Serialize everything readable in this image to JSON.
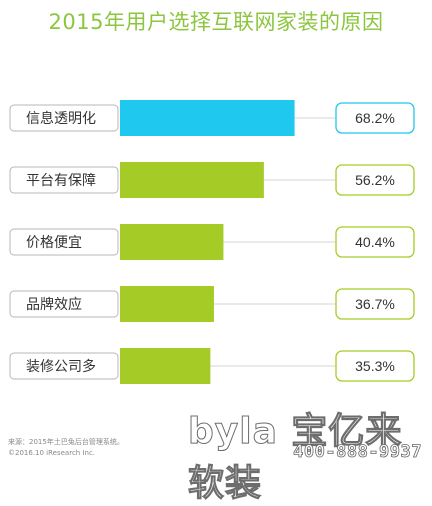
{
  "chart_data": {
    "type": "bar",
    "orientation": "horizontal",
    "title": "2015年用户选择互联网家装的原因",
    "categories": [
      "信息透明化",
      "平台有保障",
      "价格便宜",
      "品牌效应",
      "装修公司多"
    ],
    "values": [
      68.2,
      56.2,
      40.4,
      36.7,
      35.3
    ],
    "value_labels": [
      "68.2%",
      "56.2%",
      "40.4%",
      "36.7%",
      "35.3%"
    ],
    "xlim": [
      0,
      100
    ],
    "grid": false,
    "legend": "none",
    "colors": {
      "highlight": "#1ec8ef",
      "bar": "#a5cc26",
      "highlight_border": "#1ec8ef",
      "value_border": "#a5cc26",
      "title": "#8cc63f"
    }
  },
  "source": {
    "line1": "来源：2015年土巴兔后台管理系统。",
    "line2": "©2016.10 iResearch Inc."
  },
  "watermark": {
    "brand": "byla 宝亿来软装",
    "phone": "400-888-9937"
  }
}
